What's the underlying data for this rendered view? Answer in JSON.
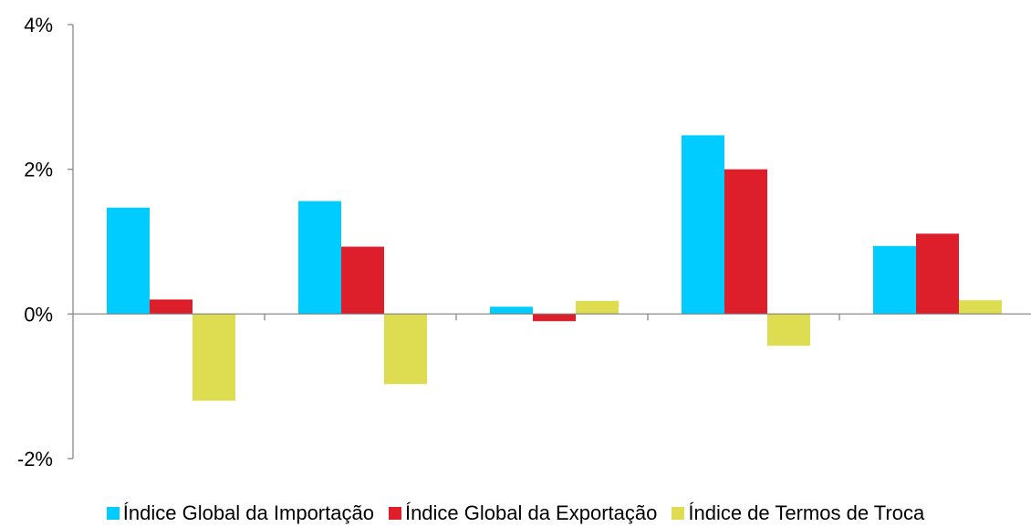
{
  "chart_data": {
    "type": "bar",
    "title": "",
    "xlabel": "",
    "ylabel": "",
    "categories": [
      "",
      "",
      "",
      "",
      ""
    ],
    "ylim": [
      -2,
      4
    ],
    "yticks": [
      -2,
      0,
      2,
      4
    ],
    "ytick_labels": [
      "-2%",
      "0%",
      "2%",
      "4%"
    ],
    "grid": false,
    "legend": "bottom",
    "series": [
      {
        "name": "Índice Global da Importação",
        "color": "#00CCFF",
        "values": [
          1.47,
          1.56,
          0.1,
          2.47,
          0.94
        ]
      },
      {
        "name": "Índice Global da Exportação",
        "color": "#DC1F2B",
        "values": [
          0.2,
          0.93,
          -0.1,
          2.0,
          1.11
        ]
      },
      {
        "name": "Índice de Termos de Troca",
        "color": "#DEDC50",
        "values": [
          -1.2,
          -0.97,
          0.18,
          -0.44,
          0.19
        ]
      }
    ]
  }
}
